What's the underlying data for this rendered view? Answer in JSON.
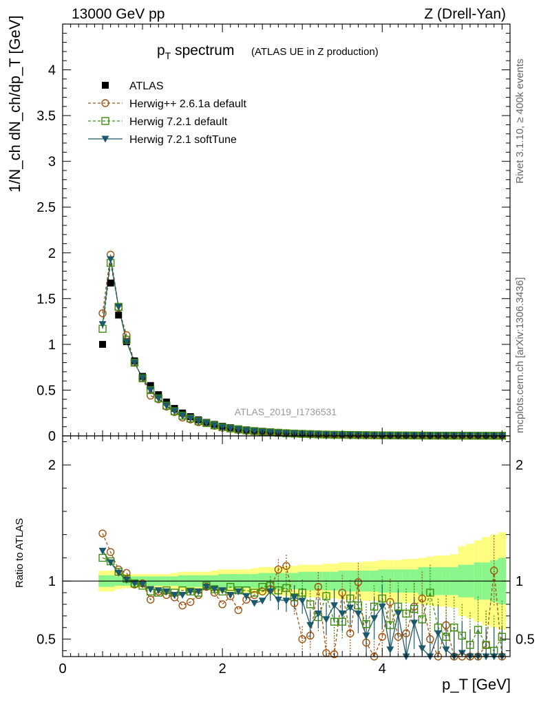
{
  "header": {
    "left": "13000 GeV pp",
    "right": "Z (Drell-Yan)"
  },
  "side_labels": {
    "rivet": "Rivet 3.1.10, ≥ 400k events",
    "mcplots": "mcplots.cern.ch [arXiv:1306.3436]"
  },
  "colors": {
    "atlas": "#000000",
    "herwig261": "#a0500a",
    "herwig721": "#3d8c0b",
    "softtune": "#1c5a6b",
    "band_inner": "#8af58a",
    "band_outer": "#fdfd80"
  },
  "chart_data": [
    {
      "type": "line",
      "title": "p_T spectrum",
      "title_main": "p",
      "title_sub": "T",
      "title_rest": " spectrum",
      "subtitle": "(ATLAS UE in Z production)",
      "xlabel": "p_T [GeV]",
      "ylabel": "1/N_ch dN_ch/dp_T [GeV]",
      "xlim": [
        0,
        5.6
      ],
      "ylim": [
        0,
        4.5
      ],
      "yticks": [
        0,
        0.5,
        1,
        1.5,
        2,
        2.5,
        3,
        3.5,
        4
      ],
      "ytick_labels": [
        "0",
        "0.5",
        "1",
        "1.5",
        "2",
        "2.5",
        "3",
        "3.5",
        "4"
      ],
      "analysis_label": "ATLAS_2019_I1736531",
      "x": [
        0.5,
        0.6,
        0.7,
        0.8,
        0.9,
        1.0,
        1.1,
        1.2,
        1.3,
        1.4,
        1.5,
        1.6,
        1.7,
        1.8,
        1.9,
        2.0,
        2.1,
        2.2,
        2.3,
        2.4,
        2.5,
        2.6,
        2.7,
        2.8,
        2.9,
        3.0,
        3.1,
        3.2,
        3.3,
        3.4,
        3.5,
        3.6,
        3.7,
        3.8,
        3.9,
        4.0,
        4.1,
        4.2,
        4.3,
        4.4,
        4.5,
        4.6,
        4.7,
        4.8,
        4.9,
        5.0,
        5.1,
        5.2,
        5.3,
        5.4,
        5.5
      ],
      "series": [
        {
          "name": "ATLAS",
          "key": "atlas",
          "values": [
            1.0,
            1.67,
            1.32,
            1.03,
            0.82,
            0.65,
            0.55,
            0.45,
            0.37,
            0.3,
            0.25,
            0.21,
            0.175,
            0.148,
            0.125,
            0.105,
            0.09,
            0.077,
            0.066,
            0.057,
            0.05,
            0.043,
            0.037,
            0.032,
            0.028,
            0.025,
            0.022,
            0.019,
            0.017,
            0.015,
            0.013,
            0.012,
            0.011,
            0.0095,
            0.0085,
            0.0075,
            0.0068,
            0.006,
            0.0054,
            0.0048,
            0.0043,
            0.0038,
            0.0034,
            0.003,
            0.0027,
            0.0024,
            0.0022,
            0.002,
            0.0018,
            0.0016,
            0.0015
          ]
        },
        {
          "name": "Herwig++ 2.6.1a default",
          "key": "herwig261",
          "values": [
            1.34,
            1.98,
            1.4,
            1.1,
            0.8,
            0.63,
            0.44,
            0.4,
            0.32,
            0.26,
            0.2,
            0.18,
            0.15,
            0.14,
            0.11,
            0.09,
            0.08,
            0.065,
            0.055,
            0.05,
            0.045,
            0.04,
            0.035,
            0.03,
            0.025,
            0.022,
            0.02,
            0.017,
            0.015,
            0.013,
            0.012,
            0.011,
            0.01,
            0.009,
            0.008,
            0.007,
            0.006,
            0.005,
            0.005,
            0.004,
            0.004,
            0.003,
            0.003,
            0.003,
            0.002,
            0.002,
            0.002,
            0.002,
            0.0015,
            0.0015,
            0.0012
          ]
        },
        {
          "name": "Herwig 7.2.1 default",
          "key": "herwig721",
          "values": [
            1.17,
            1.89,
            1.41,
            1.05,
            0.8,
            0.63,
            0.5,
            0.41,
            0.33,
            0.27,
            0.22,
            0.19,
            0.16,
            0.14,
            0.115,
            0.095,
            0.082,
            0.07,
            0.06,
            0.052,
            0.045,
            0.04,
            0.034,
            0.029,
            0.025,
            0.022,
            0.019,
            0.016,
            0.014,
            0.012,
            0.011,
            0.01,
            0.009,
            0.008,
            0.007,
            0.006,
            0.0055,
            0.005,
            0.0045,
            0.004,
            0.0035,
            0.003,
            0.0027,
            0.0024,
            0.0022,
            0.002,
            0.0018,
            0.0016,
            0.0015,
            0.0013,
            0.0012
          ]
        },
        {
          "name": "Herwig 7.2.1 softTune",
          "key": "softtune",
          "values": [
            1.22,
            1.93,
            1.41,
            1.03,
            0.8,
            0.63,
            0.5,
            0.41,
            0.33,
            0.27,
            0.22,
            0.19,
            0.16,
            0.14,
            0.115,
            0.095,
            0.082,
            0.07,
            0.058,
            0.05,
            0.043,
            0.038,
            0.032,
            0.027,
            0.023,
            0.02,
            0.017,
            0.015,
            0.013,
            0.011,
            0.01,
            0.009,
            0.008,
            0.007,
            0.006,
            0.0055,
            0.005,
            0.0045,
            0.004,
            0.0035,
            0.003,
            0.0027,
            0.0024,
            0.0021,
            0.0019,
            0.0017,
            0.0015,
            0.0014,
            0.0013,
            0.0012,
            0.0011
          ]
        }
      ]
    },
    {
      "type": "line",
      "ylabel": "Ratio to ATLAS",
      "xlabel": "p_T [GeV]",
      "xlim": [
        0,
        5.6
      ],
      "ylim": [
        0.35,
        2.25
      ],
      "yticks": [
        0.5,
        1,
        2
      ],
      "ytick_labels": [
        "0.5",
        "1",
        "2"
      ],
      "xticks": [
        0,
        2,
        4
      ],
      "xtick_labels": [
        "0",
        "2",
        "4"
      ],
      "x": [
        0.5,
        0.6,
        0.7,
        0.8,
        0.9,
        1.0,
        1.1,
        1.2,
        1.3,
        1.4,
        1.5,
        1.6,
        1.7,
        1.8,
        1.9,
        2.0,
        2.1,
        2.2,
        2.3,
        2.4,
        2.5,
        2.6,
        2.7,
        2.8,
        2.9,
        3.0,
        3.1,
        3.2,
        3.3,
        3.4,
        3.5,
        3.6,
        3.7,
        3.8,
        3.9,
        4.0,
        4.1,
        4.2,
        4.3,
        4.4,
        4.5,
        4.6,
        4.7,
        4.8,
        4.9,
        5.0,
        5.1,
        5.2,
        5.3,
        5.4,
        5.5
      ],
      "band_inner": [
        0.05,
        0.05,
        0.04,
        0.04,
        0.04,
        0.04,
        0.04,
        0.04,
        0.04,
        0.04,
        0.05,
        0.05,
        0.05,
        0.05,
        0.05,
        0.06,
        0.06,
        0.06,
        0.06,
        0.06,
        0.07,
        0.07,
        0.07,
        0.07,
        0.07,
        0.08,
        0.08,
        0.08,
        0.08,
        0.08,
        0.09,
        0.09,
        0.09,
        0.09,
        0.09,
        0.1,
        0.1,
        0.1,
        0.1,
        0.1,
        0.12,
        0.12,
        0.12,
        0.12,
        0.12,
        0.14,
        0.14,
        0.16,
        0.16,
        0.18,
        0.2
      ],
      "band_outer": [
        0.09,
        0.09,
        0.07,
        0.06,
        0.06,
        0.06,
        0.06,
        0.06,
        0.06,
        0.07,
        0.08,
        0.08,
        0.08,
        0.08,
        0.09,
        0.1,
        0.1,
        0.1,
        0.1,
        0.11,
        0.12,
        0.12,
        0.12,
        0.13,
        0.13,
        0.14,
        0.14,
        0.14,
        0.15,
        0.15,
        0.16,
        0.16,
        0.16,
        0.17,
        0.17,
        0.18,
        0.18,
        0.18,
        0.19,
        0.19,
        0.2,
        0.21,
        0.22,
        0.22,
        0.23,
        0.3,
        0.32,
        0.35,
        0.38,
        0.4,
        0.42
      ],
      "series": [
        {
          "name": "Herwig++ 2.6.1a default",
          "key": "herwig261",
          "values": [
            1.41,
            1.25,
            1.1,
            1.07,
            0.97,
            0.98,
            0.84,
            0.91,
            0.88,
            0.86,
            0.79,
            0.82,
            0.88,
            0.95,
            0.9,
            0.8,
            0.87,
            0.75,
            0.84,
            0.88,
            0.91,
            0.93,
            1.1,
            1.13,
            0.81,
            0.5,
            0.53,
            0.95,
            0.38,
            0.37,
            0.9,
            0.55,
            0.99,
            0.47,
            0.3,
            0.52,
            0.82,
            0.52,
            0.55,
            0.78,
            0.85,
            0.5,
            0.3,
            0.62,
            0.28,
            0.3,
            0.3,
            0.3,
            0.45,
            1.09,
            0.3
          ]
        },
        {
          "name": "Herwig 7.2.1 default",
          "key": "herwig721",
          "values": [
            1.2,
            1.17,
            1.08,
            1.02,
            0.98,
            0.96,
            0.91,
            0.9,
            0.92,
            0.9,
            0.92,
            0.91,
            0.9,
            0.96,
            0.93,
            0.91,
            0.95,
            0.92,
            0.92,
            0.9,
            0.95,
            0.96,
            0.92,
            0.94,
            0.86,
            0.9,
            0.8,
            0.69,
            0.87,
            0.65,
            0.65,
            0.85,
            0.79,
            0.63,
            0.78,
            0.85,
            0.62,
            0.78,
            0.72,
            0.76,
            0.67,
            0.9,
            0.6,
            0.52,
            0.6,
            0.53,
            0.45,
            0.58,
            0.45,
            0.4,
            0.52
          ]
        },
        {
          "name": "Herwig 7.2.1 softTune",
          "key": "softtune",
          "values": [
            1.26,
            1.16,
            1.07,
            1.01,
            0.98,
            0.97,
            0.93,
            0.92,
            0.91,
            0.88,
            0.88,
            0.91,
            0.91,
            0.95,
            0.93,
            0.92,
            0.88,
            0.91,
            0.87,
            0.81,
            0.83,
            0.91,
            0.84,
            0.83,
            0.86,
            0.83,
            0.62,
            0.72,
            0.67,
            0.79,
            0.72,
            0.77,
            0.72,
            0.53,
            0.68,
            0.78,
            0.41,
            0.72,
            0.34,
            0.64,
            0.42,
            0.3,
            0.55,
            0.41,
            0.34,
            0.38,
            0.3,
            0.3,
            0.3,
            0.3,
            0.3
          ]
        }
      ]
    }
  ],
  "legend": [
    {
      "label": "ATLAS",
      "key": "atlas"
    },
    {
      "label": "Herwig++ 2.6.1a default",
      "key": "herwig261"
    },
    {
      "label": "Herwig 7.2.1 default",
      "key": "herwig721"
    },
    {
      "label": "Herwig 7.2.1 softTune",
      "key": "softtune"
    }
  ]
}
